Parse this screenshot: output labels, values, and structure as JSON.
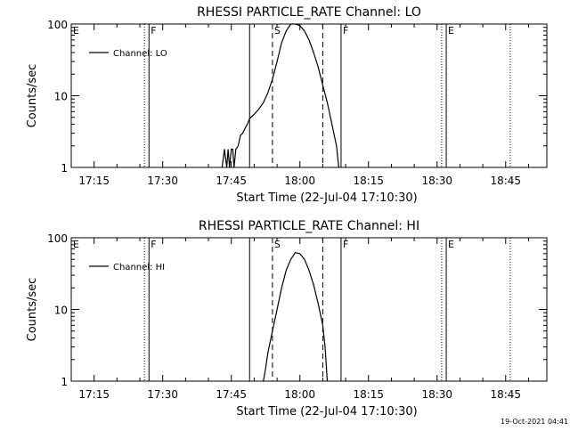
{
  "footer_timestamp": "19-Oct-2021 04:41",
  "chart_data": [
    {
      "type": "line",
      "title": "RHESSI PARTICLE_RATE Channel: LO",
      "xlabel": "Start Time (22-Jul-04 17:10:30)",
      "ylabel": "Counts/sec",
      "yscale": "log",
      "xlim": [
        "17:10",
        "18:54"
      ],
      "ylim": [
        1,
        100
      ],
      "x_ticks": [
        "17:15",
        "17:30",
        "17:45",
        "18:00",
        "18:15",
        "18:30",
        "18:45"
      ],
      "y_ticks": [
        "1",
        "10",
        "100"
      ],
      "legend": {
        "label": "Channel: LO",
        "placement": "top-left"
      },
      "markers": [
        {
          "label": "E",
          "time": "17:10",
          "style": "solid"
        },
        {
          "label": "",
          "time": "17:26",
          "style": "dotted"
        },
        {
          "label": "F",
          "time": "17:27",
          "style": "solid"
        },
        {
          "label": "",
          "time": "17:49",
          "style": "solid"
        },
        {
          "label": "S",
          "time": "17:54",
          "style": "dashed"
        },
        {
          "label": "",
          "time": "18:05",
          "style": "dashed"
        },
        {
          "label": "F",
          "time": "18:09",
          "style": "solid"
        },
        {
          "label": "",
          "time": "18:31",
          "style": "dotted"
        },
        {
          "label": "E",
          "time": "18:32",
          "style": "solid"
        },
        {
          "label": "",
          "time": "18:46",
          "style": "dotted"
        }
      ],
      "series": [
        {
          "name": "Channel: LO",
          "x": [
            "17:43",
            "17:43.5",
            "17:44",
            "17:44.3",
            "17:44.6",
            "17:45",
            "17:45.3",
            "17:45.6",
            "17:46",
            "17:46.5",
            "17:47",
            "17:47.5",
            "17:48",
            "17:48.5",
            "17:49",
            "17:50",
            "17:51",
            "17:52",
            "17:53",
            "17:54",
            "17:55",
            "17:56",
            "17:57",
            "17:58",
            "17:59",
            "18:00",
            "18:01",
            "18:02",
            "18:03",
            "18:04",
            "18:05",
            "18:06",
            "18:07",
            "18:08",
            "18:08.5"
          ],
          "values": [
            1,
            1.8,
            1,
            1.8,
            1,
            1.8,
            1.8,
            1,
            1.8,
            2,
            2.8,
            3,
            3.5,
            4,
            4.8,
            5.5,
            6.5,
            8,
            11,
            17,
            30,
            55,
            80,
            100,
            100,
            95,
            80,
            60,
            40,
            25,
            14,
            8,
            4,
            2,
            1
          ]
        }
      ]
    },
    {
      "type": "line",
      "title": "RHESSI PARTICLE_RATE Channel: HI",
      "xlabel": "Start Time (22-Jul-04 17:10:30)",
      "ylabel": "Counts/sec",
      "yscale": "log",
      "xlim": [
        "17:10",
        "18:54"
      ],
      "ylim": [
        1,
        100
      ],
      "x_ticks": [
        "17:15",
        "17:30",
        "17:45",
        "18:00",
        "18:15",
        "18:30",
        "18:45"
      ],
      "y_ticks": [
        "1",
        "10",
        "100"
      ],
      "legend": {
        "label": "Channel: HI",
        "placement": "top-left"
      },
      "markers": [
        {
          "label": "E",
          "time": "17:10",
          "style": "solid"
        },
        {
          "label": "",
          "time": "17:26",
          "style": "dotted"
        },
        {
          "label": "F",
          "time": "17:27",
          "style": "solid"
        },
        {
          "label": "",
          "time": "17:49",
          "style": "solid"
        },
        {
          "label": "S",
          "time": "17:54",
          "style": "dashed"
        },
        {
          "label": "",
          "time": "18:05",
          "style": "dashed"
        },
        {
          "label": "F",
          "time": "18:09",
          "style": "solid"
        },
        {
          "label": "",
          "time": "18:31",
          "style": "dotted"
        },
        {
          "label": "E",
          "time": "18:32",
          "style": "solid"
        },
        {
          "label": "",
          "time": "18:46",
          "style": "dotted"
        }
      ],
      "series": [
        {
          "name": "Channel: HI",
          "x": [
            "17:52",
            "17:52.5",
            "17:53",
            "17:54",
            "17:55",
            "17:56",
            "17:57",
            "17:58",
            "17:59",
            "18:00",
            "18:01",
            "18:02",
            "18:03",
            "18:04",
            "18:05",
            "18:05.5",
            "18:06"
          ],
          "values": [
            1,
            1.5,
            2.5,
            5,
            10,
            20,
            35,
            50,
            62,
            60,
            50,
            35,
            22,
            12,
            6,
            3,
            1
          ]
        }
      ]
    }
  ]
}
